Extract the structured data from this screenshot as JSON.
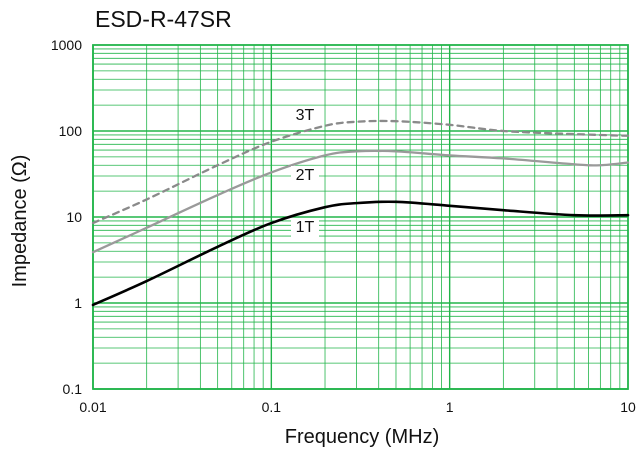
{
  "chart_data": {
    "type": "line",
    "title": "ESD-R-47SR",
    "xlabel": "Frequency (MHz)",
    "ylabel": "Impedance (Ω)",
    "x_scale": "log",
    "y_scale": "log",
    "xlim": [
      0.01,
      10
    ],
    "ylim": [
      0.1,
      1000
    ],
    "grid": true,
    "x_ticks": [
      {
        "value": 0.01,
        "label": "0.01"
      },
      {
        "value": 0.1,
        "label": "0.1"
      },
      {
        "value": 1,
        "label": "1"
      },
      {
        "value": 10,
        "label": "10"
      }
    ],
    "y_ticks": [
      {
        "value": 0.1,
        "label": "0.1"
      },
      {
        "value": 1,
        "label": "1"
      },
      {
        "value": 10,
        "label": "10"
      },
      {
        "value": 100,
        "label": "100"
      },
      {
        "value": 1000,
        "label": "1000"
      }
    ],
    "series": [
      {
        "name": "1T",
        "color": "#000000",
        "dash": false,
        "x": [
          0.01,
          0.02,
          0.05,
          0.1,
          0.2,
          0.3,
          0.5,
          1,
          2,
          5,
          10
        ],
        "y": [
          0.95,
          1.8,
          4.5,
          8.5,
          13,
          14.5,
          15,
          13.5,
          12,
          10.5,
          10.5
        ]
      },
      {
        "name": "2T",
        "color": "#9a9a9a",
        "dash": false,
        "x": [
          0.01,
          0.02,
          0.05,
          0.1,
          0.2,
          0.3,
          0.5,
          1,
          2,
          5,
          7,
          10
        ],
        "y": [
          3.9,
          7.5,
          18,
          33,
          52,
          58,
          58,
          52,
          48,
          41,
          40,
          43
        ]
      },
      {
        "name": "3T",
        "color": "#8a8a8a",
        "dash": true,
        "x": [
          0.01,
          0.02,
          0.05,
          0.1,
          0.2,
          0.3,
          0.5,
          1,
          2,
          5,
          10
        ],
        "y": [
          8.5,
          16,
          40,
          75,
          115,
          128,
          130,
          118,
          100,
          92,
          88
        ]
      }
    ]
  }
}
